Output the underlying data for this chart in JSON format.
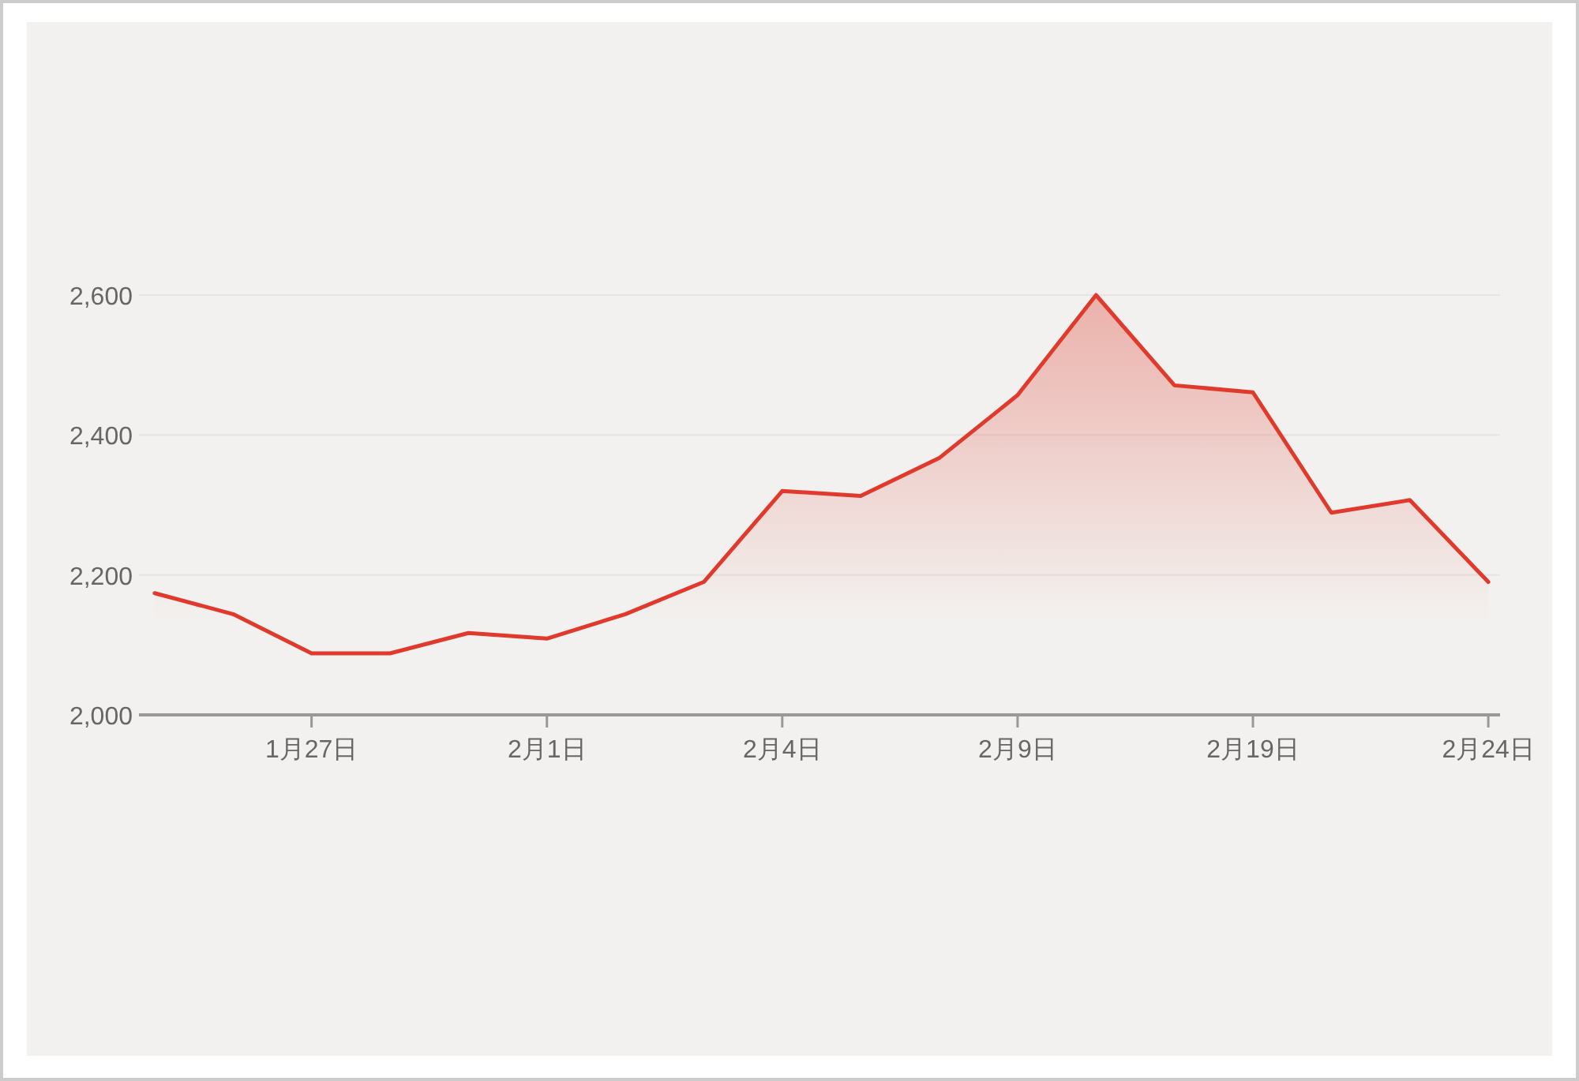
{
  "chart_data": {
    "type": "area",
    "categories": [
      null,
      null,
      "1月27日",
      null,
      null,
      "2月1日",
      null,
      null,
      "2月4日",
      null,
      null,
      "2月9日",
      null,
      null,
      "2月19日",
      null,
      null,
      "2月24日"
    ],
    "series": [
      {
        "color": "#e03a2c",
        "values": [
          2174,
          2144,
          2088,
          2088,
          2117,
          2109,
          2144,
          2190,
          2320,
          2313,
          2367,
          2457,
          2600,
          2471,
          2461,
          2289,
          2307,
          2190
        ]
      }
    ],
    "ylim": [
      2000,
      2600
    ],
    "yticks": [
      {
        "value": 2000,
        "label": "2,000"
      },
      {
        "value": 2200,
        "label": "2,200"
      },
      {
        "value": 2400,
        "label": "2,400"
      },
      {
        "value": 2600,
        "label": "2,600"
      }
    ],
    "grid": "y"
  }
}
